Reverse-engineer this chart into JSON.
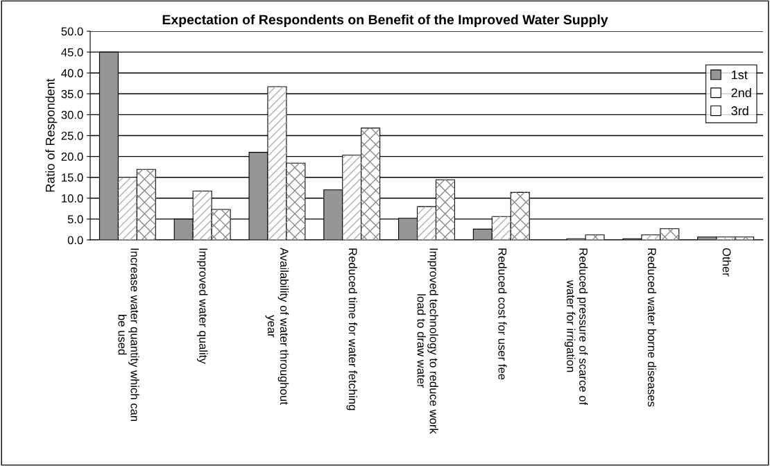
{
  "chart_data": {
    "type": "bar",
    "title": "Expectation of Respondents on Benefit of the Improved Water Supply",
    "ylabel": "Ratio of Respondent",
    "categories": [
      "Increase water quantity which can be used",
      "Improved water quality",
      "Availability of water throughout year",
      "Reduced time for water fetching",
      "Improved technology to reduce work load to draw water",
      "Reduced cost for user fee",
      "Reduced pressure of scarce of water for irrigation",
      "Reduced water borne diseases",
      "Other"
    ],
    "series": [
      {
        "name": "1st",
        "color": "#969696",
        "values": [
          45.0,
          5.0,
          21.0,
          12.0,
          5.2,
          2.6,
          0.0,
          0.3,
          0.7
        ]
      },
      {
        "name": "2nd",
        "color": "#ffffff",
        "values": [
          15.0,
          11.7,
          36.7,
          20.3,
          8.0,
          5.6,
          0.3,
          1.2,
          0.7
        ]
      },
      {
        "name": "3rd",
        "color": "#ffffff",
        "values": [
          16.9,
          7.3,
          18.4,
          26.8,
          14.4,
          11.4,
          1.2,
          2.7,
          0.7
        ]
      }
    ],
    "ylim": [
      0,
      50
    ],
    "yticks": [
      {
        "value": 0,
        "label": "0.0"
      },
      {
        "value": 5,
        "label": "5.0"
      },
      {
        "value": 10,
        "label": "10.0"
      },
      {
        "value": 15,
        "label": "15.0"
      },
      {
        "value": 20,
        "label": "20.0"
      },
      {
        "value": 25,
        "label": "25.0"
      },
      {
        "value": 30,
        "label": "30.0"
      },
      {
        "value": 35,
        "label": "35.0"
      },
      {
        "value": 40,
        "label": "40.0"
      },
      {
        "value": 45,
        "label": "45.0"
      },
      {
        "value": 50,
        "label": "50.0"
      }
    ],
    "grid": "y",
    "legend": "right"
  }
}
